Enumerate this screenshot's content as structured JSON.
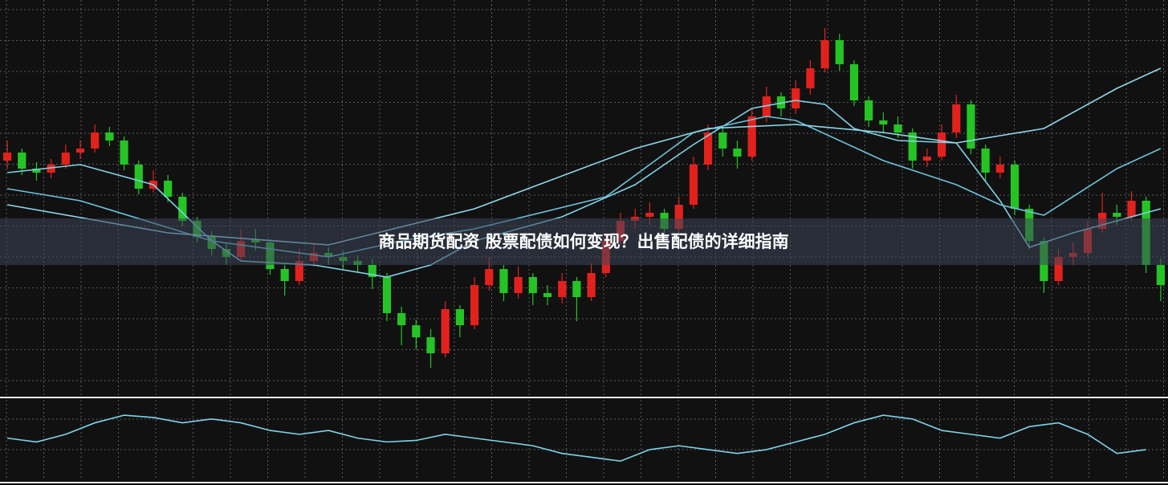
{
  "chart_data": {
    "type": "candlestick",
    "title": "商品期货配资 股票配债如何变现？出售配债的详细指南",
    "ylim": [
      0,
      480
    ],
    "up_color": "#e3211c",
    "down_color": "#25c425",
    "ohlc": [
      [
        280,
        305,
        270,
        290
      ],
      [
        290,
        295,
        262,
        270
      ],
      [
        270,
        278,
        255,
        265
      ],
      [
        265,
        282,
        258,
        275
      ],
      [
        275,
        300,
        270,
        290
      ],
      [
        290,
        305,
        282,
        295
      ],
      [
        295,
        325,
        290,
        315
      ],
      [
        315,
        322,
        298,
        305
      ],
      [
        305,
        310,
        268,
        275
      ],
      [
        275,
        280,
        238,
        245
      ],
      [
        245,
        268,
        240,
        255
      ],
      [
        255,
        262,
        228,
        235
      ],
      [
        235,
        240,
        198,
        205
      ],
      [
        205,
        210,
        178,
        185
      ],
      [
        185,
        192,
        162,
        170
      ],
      [
        170,
        178,
        150,
        160
      ],
      [
        160,
        195,
        155,
        180
      ],
      [
        182,
        195,
        168,
        178
      ],
      [
        178,
        182,
        138,
        145
      ],
      [
        145,
        150,
        112,
        130
      ],
      [
        130,
        170,
        125,
        155
      ],
      [
        155,
        178,
        148,
        165
      ],
      [
        165,
        172,
        150,
        160
      ],
      [
        160,
        168,
        145,
        155
      ],
      [
        155,
        162,
        140,
        150
      ],
      [
        150,
        158,
        120,
        135
      ],
      [
        135,
        140,
        80,
        90
      ],
      [
        90,
        98,
        50,
        75
      ],
      [
        75,
        82,
        45,
        60
      ],
      [
        60,
        70,
        22,
        40
      ],
      [
        40,
        105,
        35,
        95
      ],
      [
        95,
        100,
        60,
        75
      ],
      [
        75,
        135,
        70,
        125
      ],
      [
        125,
        160,
        118,
        145
      ],
      [
        145,
        150,
        105,
        115
      ],
      [
        115,
        148,
        108,
        135
      ],
      [
        135,
        140,
        100,
        115
      ],
      [
        115,
        125,
        100,
        110
      ],
      [
        110,
        140,
        102,
        130
      ],
      [
        130,
        135,
        80,
        110
      ],
      [
        110,
        152,
        105,
        140
      ],
      [
        140,
        190,
        135,
        180
      ],
      [
        180,
        215,
        175,
        205
      ],
      [
        205,
        220,
        195,
        210
      ],
      [
        210,
        228,
        200,
        215
      ],
      [
        215,
        220,
        185,
        195
      ],
      [
        195,
        235,
        190,
        225
      ],
      [
        225,
        285,
        220,
        275
      ],
      [
        275,
        325,
        268,
        315
      ],
      [
        315,
        320,
        285,
        295
      ],
      [
        295,
        305,
        270,
        285
      ],
      [
        285,
        345,
        280,
        335
      ],
      [
        335,
        372,
        328,
        360
      ],
      [
        360,
        365,
        335,
        345
      ],
      [
        345,
        380,
        338,
        370
      ],
      [
        370,
        405,
        362,
        395
      ],
      [
        395,
        445,
        390,
        430
      ],
      [
        430,
        438,
        392,
        400
      ],
      [
        400,
        405,
        348,
        355
      ],
      [
        355,
        360,
        322,
        330
      ],
      [
        330,
        340,
        315,
        325
      ],
      [
        325,
        335,
        308,
        315
      ],
      [
        315,
        320,
        270,
        280
      ],
      [
        280,
        295,
        272,
        285
      ],
      [
        285,
        325,
        280,
        315
      ],
      [
        315,
        362,
        308,
        350
      ],
      [
        350,
        355,
        288,
        295
      ],
      [
        295,
        300,
        255,
        265
      ],
      [
        265,
        285,
        258,
        275
      ],
      [
        275,
        280,
        212,
        220
      ],
      [
        220,
        225,
        170,
        180
      ],
      [
        180,
        185,
        115,
        130
      ],
      [
        130,
        170,
        125,
        160
      ],
      [
        160,
        178,
        150,
        165
      ],
      [
        165,
        205,
        160,
        195
      ],
      [
        195,
        240,
        190,
        215
      ],
      [
        215,
        225,
        200,
        210
      ],
      [
        210,
        242,
        205,
        230
      ],
      [
        230,
        235,
        140,
        150
      ],
      [
        150,
        158,
        105,
        125
      ]
    ],
    "lines": [
      {
        "color": "#7fd3e8",
        "x": [
          0,
          5,
          10,
          14,
          16,
          21,
          26,
          29,
          32,
          38,
          43,
          47,
          51,
          54,
          56,
          58,
          61,
          65,
          68,
          70,
          73,
          76,
          79
        ],
        "values": [
          265,
          275,
          250,
          180,
          155,
          150,
          135,
          150,
          180,
          210,
          250,
          300,
          345,
          355,
          350,
          320,
          305,
          302,
          230,
          172,
          190,
          205,
          220
        ]
      },
      {
        "color": "#6cc4dc",
        "x": [
          0,
          5,
          14,
          22,
          27,
          32,
          41,
          47,
          52,
          54,
          60,
          65,
          68,
          71,
          76,
          79
        ],
        "values": [
          245,
          230,
          180,
          160,
          180,
          195,
          235,
          315,
          335,
          330,
          280,
          250,
          225,
          212,
          270,
          295
        ]
      },
      {
        "color": "#8fd8ec",
        "x": [
          0,
          11,
          22,
          32,
          43,
          48,
          54,
          60,
          65,
          71,
          76,
          79
        ],
        "values": [
          225,
          190,
          175,
          220,
          295,
          320,
          325,
          315,
          302,
          320,
          370,
          395
        ]
      }
    ],
    "indicator": {
      "type": "line",
      "color": "#7fd3e8",
      "ylim": [
        0,
        105
      ],
      "x": [
        0,
        2,
        4,
        6,
        8,
        10,
        12,
        14,
        16,
        18,
        20,
        22,
        24,
        26,
        28,
        30,
        32,
        34,
        36,
        38,
        40,
        42,
        44,
        46,
        48,
        50,
        52,
        54,
        56,
        58,
        60,
        62,
        64,
        66,
        68,
        70,
        72,
        74,
        76,
        78
      ],
      "values": [
        55,
        50,
        60,
        75,
        85,
        82,
        75,
        80,
        75,
        65,
        60,
        65,
        55,
        50,
        52,
        60,
        55,
        50,
        45,
        35,
        30,
        25,
        40,
        45,
        40,
        35,
        40,
        50,
        60,
        75,
        85,
        80,
        65,
        60,
        55,
        70,
        75,
        60,
        35,
        40
      ]
    }
  }
}
